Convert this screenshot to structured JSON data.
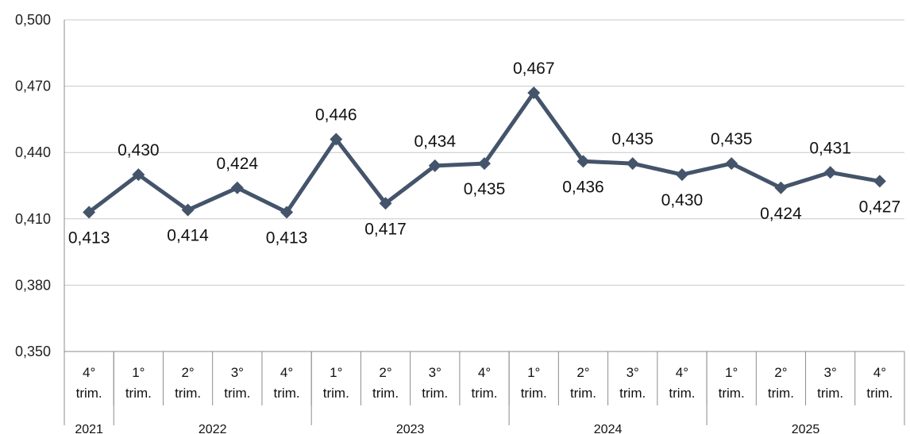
{
  "chart_data": {
    "type": "line",
    "title": "",
    "xlabel": "",
    "ylabel": "",
    "ylim": [
      0.35,
      0.5
    ],
    "yticks": [
      "0,350",
      "0,380",
      "0,410",
      "0,440",
      "0,470",
      "0,500"
    ],
    "grid": true,
    "legend": "none",
    "color": "#44546a",
    "categories": [
      {
        "line1": "4°",
        "line2": "trim.",
        "year": "2021"
      },
      {
        "line1": "1°",
        "line2": "trim.",
        "year": "2022"
      },
      {
        "line1": "2°",
        "line2": "trim.",
        "year": "2022"
      },
      {
        "line1": "3°",
        "line2": "trim.",
        "year": "2022"
      },
      {
        "line1": "4°",
        "line2": "trim.",
        "year": "2022"
      },
      {
        "line1": "1°",
        "line2": "trim.",
        "year": "2023"
      },
      {
        "line1": "2°",
        "line2": "trim.",
        "year": "2023"
      },
      {
        "line1": "3°",
        "line2": "trim.",
        "year": "2023"
      },
      {
        "line1": "4°",
        "line2": "trim.",
        "year": "2023"
      },
      {
        "line1": "1°",
        "line2": "trim.",
        "year": "2024"
      },
      {
        "line1": "2°",
        "line2": "trim.",
        "year": "2024"
      },
      {
        "line1": "3°",
        "line2": "trim.",
        "year": "2024"
      },
      {
        "line1": "4°",
        "line2": "trim.",
        "year": "2024"
      },
      {
        "line1": "1°",
        "line2": "trim.",
        "year": "2025"
      },
      {
        "line1": "2°",
        "line2": "trim.",
        "year": "2025"
      },
      {
        "line1": "3°",
        "line2": "trim.",
        "year": "2025"
      },
      {
        "line1": "4°",
        "line2": "trim.",
        "year": "2025"
      }
    ],
    "years": [
      "2021",
      "2022",
      "2023",
      "2024",
      "2025"
    ],
    "values": [
      0.413,
      0.43,
      0.414,
      0.424,
      0.413,
      0.446,
      0.417,
      0.434,
      0.435,
      0.467,
      0.436,
      0.435,
      0.43,
      0.435,
      0.424,
      0.431,
      0.427
    ],
    "data_labels": [
      "0,413",
      "0,430",
      "0,414",
      "0,424",
      "0,413",
      "0,446",
      "0,417",
      "0,434",
      "0,435",
      "0,467",
      "0,436",
      "0,435",
      "0,430",
      "0,435",
      "0,424",
      "0,431",
      "0,427"
    ],
    "label_positions": [
      "below",
      "above",
      "below",
      "above",
      "below",
      "above",
      "below",
      "above",
      "below",
      "above",
      "below",
      "above",
      "below",
      "above",
      "below",
      "above",
      "below"
    ]
  }
}
